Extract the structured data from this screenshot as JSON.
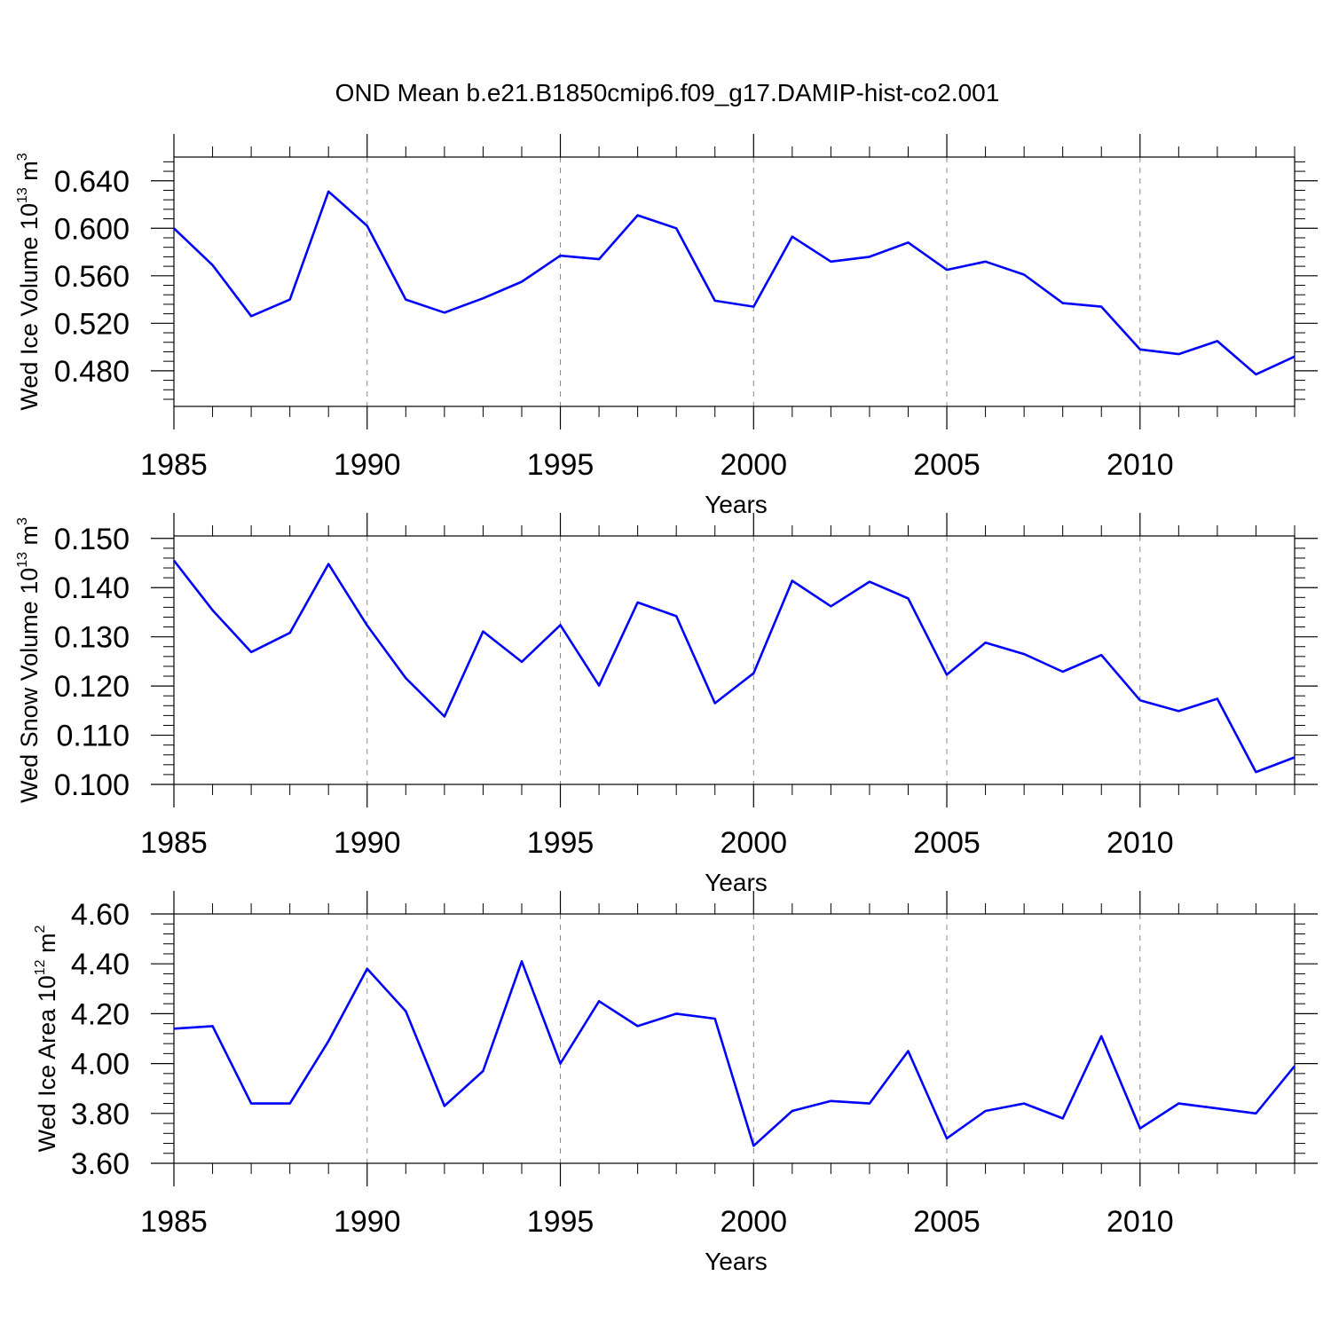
{
  "title": "OND Mean b.e21.B1850cmip6.f09_g17.DAMIP-hist-co2.001",
  "colors": {
    "series": "#0000ff",
    "axes": "#000000",
    "grid": "#888888"
  },
  "chart_data": [
    {
      "type": "line",
      "ylabel": {
        "main": "Wed Ice Volume 10",
        "exp": "13",
        "unit": " m",
        "unit_exp": "3"
      },
      "xlabel": "Years",
      "xlim": [
        1985,
        2014
      ],
      "ylim": [
        0.45,
        0.66
      ],
      "xticks": [
        1985,
        1990,
        1995,
        2000,
        2005,
        2010
      ],
      "yticks": [
        "0.480",
        "0.520",
        "0.560",
        "0.600",
        "0.640"
      ],
      "grid": "vertical dashed at major x ticks",
      "x": [
        1985,
        1986,
        1987,
        1988,
        1989,
        1990,
        1991,
        1992,
        1993,
        1994,
        1995,
        1996,
        1997,
        1998,
        1999,
        2000,
        2001,
        2002,
        2003,
        2004,
        2005,
        2006,
        2007,
        2008,
        2009,
        2010,
        2011,
        2012,
        2013,
        2014
      ],
      "values": [
        0.6,
        0.569,
        0.526,
        0.54,
        0.631,
        0.602,
        0.54,
        0.529,
        0.541,
        0.555,
        0.577,
        0.574,
        0.611,
        0.6,
        0.539,
        0.534,
        0.593,
        0.572,
        0.576,
        0.588,
        0.565,
        0.572,
        0.561,
        0.537,
        0.534,
        0.498,
        0.494,
        0.505,
        0.477,
        0.492
      ]
    },
    {
      "type": "line",
      "ylabel": {
        "main": "Wed Snow Volume 10",
        "exp": "13",
        "unit": " m",
        "unit_exp": "3"
      },
      "xlabel": "Years",
      "xlim": [
        1985,
        2014
      ],
      "ylim": [
        0.1,
        0.1505
      ],
      "xticks": [
        1985,
        1990,
        1995,
        2000,
        2005,
        2010
      ],
      "yticks": [
        "0.100",
        "0.110",
        "0.120",
        "0.130",
        "0.140",
        "0.150"
      ],
      "grid": "vertical dashed at major x ticks",
      "x": [
        1985,
        1986,
        1987,
        1988,
        1989,
        1990,
        1991,
        1992,
        1993,
        1994,
        1995,
        1996,
        1997,
        1998,
        1999,
        2000,
        2001,
        2002,
        2003,
        2004,
        2005,
        2006,
        2007,
        2008,
        2009,
        2010,
        2011,
        2012,
        2013,
        2014
      ],
      "values": [
        0.1455,
        0.1354,
        0.1269,
        0.1308,
        0.1448,
        0.1323,
        0.1216,
        0.1138,
        0.1311,
        0.1249,
        0.1324,
        0.1201,
        0.137,
        0.1342,
        0.1165,
        0.1226,
        0.1414,
        0.1362,
        0.1412,
        0.1378,
        0.1223,
        0.1288,
        0.1265,
        0.1229,
        0.1263,
        0.1171,
        0.1149,
        0.1174,
        0.1025,
        0.1055
      ]
    },
    {
      "type": "line",
      "ylabel": {
        "main": "Wed Ice Area 10",
        "exp": "12",
        "unit": " m",
        "unit_exp": "2"
      },
      "xlabel": "Years",
      "xlim": [
        1985,
        2014
      ],
      "ylim": [
        3.6,
        4.6
      ],
      "xticks": [
        1985,
        1990,
        1995,
        2000,
        2005,
        2010
      ],
      "yticks": [
        "3.60",
        "3.80",
        "4.00",
        "4.20",
        "4.40",
        "4.60"
      ],
      "grid": "vertical dashed at major x ticks",
      "x": [
        1985,
        1986,
        1987,
        1988,
        1989,
        1990,
        1991,
        1992,
        1993,
        1994,
        1995,
        1996,
        1997,
        1998,
        1999,
        2000,
        2001,
        2002,
        2003,
        2004,
        2005,
        2006,
        2007,
        2008,
        2009,
        2010,
        2011,
        2012,
        2013,
        2014
      ],
      "values": [
        4.14,
        4.15,
        3.84,
        3.84,
        4.09,
        4.38,
        4.21,
        3.83,
        3.97,
        4.41,
        4.0,
        4.25,
        4.15,
        4.2,
        4.18,
        3.67,
        3.81,
        3.85,
        3.84,
        4.05,
        3.7,
        3.81,
        3.84,
        3.78,
        4.11,
        3.74,
        3.84,
        3.82,
        3.8,
        3.99
      ]
    }
  ]
}
